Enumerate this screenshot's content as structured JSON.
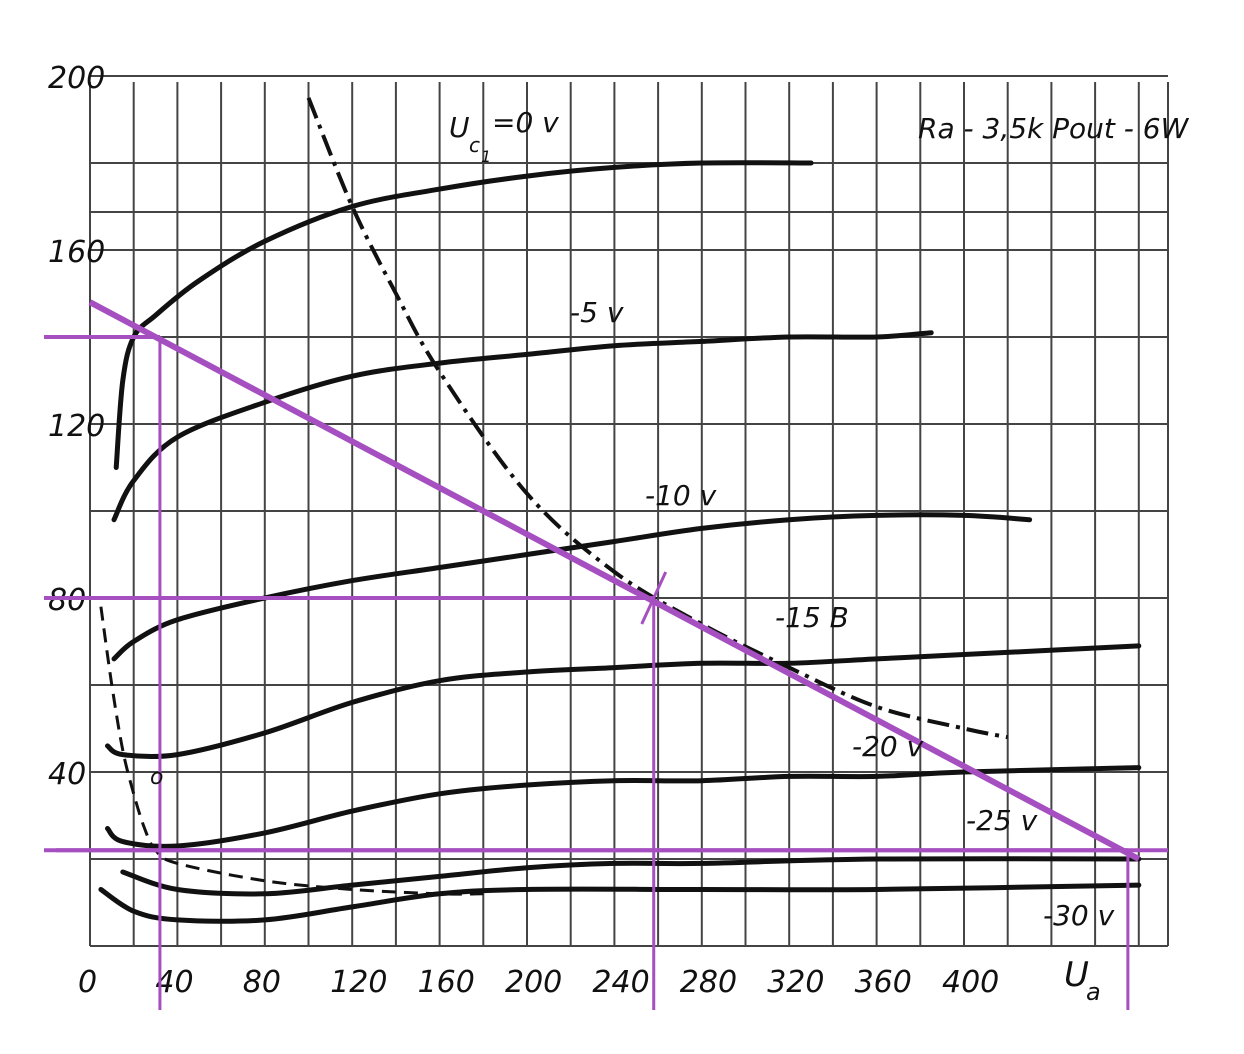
{
  "chart_data": {
    "type": "line",
    "title": "",
    "annotation": "Ra - 3,5k  Pout - 6W",
    "xlabel": "U",
    "xlabel_sub": "a",
    "ylabel": "",
    "xlim": [
      0,
      460
    ],
    "ylim": [
      0,
      200
    ],
    "x_ticks": [
      "0",
      "40",
      "80",
      "120",
      "160",
      "200",
      "240",
      "280",
      "320",
      "360",
      "400"
    ],
    "y_ticks": [
      "200",
      "160",
      "120",
      "80",
      "40"
    ],
    "grid": true,
    "curve_labels": {
      "uc1_main": "U",
      "uc1_sub": "c",
      "uc1_subsub": "1",
      "uc1_value": "=0 v",
      "m5": "-5 v",
      "m10": "-10 v",
      "m15": "-15 B",
      "m20": "-20 v",
      "m25": "-25 v",
      "m30": "-30 v",
      "small_circle": "o"
    },
    "series": [
      {
        "name": "=0 v",
        "points": [
          [
            12,
            110
          ],
          [
            15,
            130
          ],
          [
            20,
            140
          ],
          [
            30,
            145
          ],
          [
            50,
            153
          ],
          [
            80,
            162
          ],
          [
            120,
            170
          ],
          [
            160,
            174
          ],
          [
            200,
            177
          ],
          [
            240,
            179
          ],
          [
            280,
            180
          ],
          [
            330,
            180
          ]
        ]
      },
      {
        "name": "-5 v",
        "points": [
          [
            11,
            98
          ],
          [
            20,
            107
          ],
          [
            40,
            117
          ],
          [
            80,
            125
          ],
          [
            120,
            131
          ],
          [
            160,
            134
          ],
          [
            200,
            136
          ],
          [
            240,
            138
          ],
          [
            280,
            139
          ],
          [
            320,
            140
          ],
          [
            360,
            140
          ],
          [
            385,
            141
          ]
        ]
      },
      {
        "name": "-10 v",
        "points": [
          [
            11,
            66
          ],
          [
            20,
            70
          ],
          [
            40,
            75
          ],
          [
            80,
            80
          ],
          [
            120,
            84
          ],
          [
            160,
            87
          ],
          [
            200,
            90
          ],
          [
            240,
            93
          ],
          [
            280,
            96
          ],
          [
            320,
            98
          ],
          [
            360,
            99
          ],
          [
            400,
            99
          ],
          [
            430,
            98
          ]
        ]
      },
      {
        "name": "-15 B",
        "points": [
          [
            8,
            46
          ],
          [
            15,
            44
          ],
          [
            40,
            44
          ],
          [
            80,
            49
          ],
          [
            120,
            56
          ],
          [
            160,
            61
          ],
          [
            200,
            63
          ],
          [
            240,
            64
          ],
          [
            280,
            65
          ],
          [
            320,
            65
          ],
          [
            360,
            66
          ],
          [
            400,
            67
          ],
          [
            480,
            69
          ]
        ]
      },
      {
        "name": "-20 v",
        "points": [
          [
            8,
            27
          ],
          [
            15,
            24
          ],
          [
            40,
            23
          ],
          [
            80,
            26
          ],
          [
            120,
            31
          ],
          [
            160,
            35
          ],
          [
            200,
            37
          ],
          [
            240,
            38
          ],
          [
            280,
            38
          ],
          [
            320,
            39
          ],
          [
            360,
            39
          ],
          [
            400,
            40
          ],
          [
            480,
            41
          ]
        ]
      },
      {
        "name": "-25 v",
        "points": [
          [
            15,
            17
          ],
          [
            40,
            13
          ],
          [
            80,
            12
          ],
          [
            120,
            14
          ],
          [
            160,
            16
          ],
          [
            200,
            18
          ],
          [
            240,
            19
          ],
          [
            280,
            19
          ],
          [
            360,
            20
          ],
          [
            480,
            20
          ]
        ]
      },
      {
        "name": "-30 v",
        "points": [
          [
            5,
            13
          ],
          [
            20,
            8
          ],
          [
            40,
            6
          ],
          [
            80,
            6
          ],
          [
            120,
            9
          ],
          [
            160,
            12
          ],
          [
            200,
            13
          ],
          [
            280,
            13
          ],
          [
            360,
            13
          ],
          [
            480,
            14
          ]
        ]
      }
    ],
    "power_limit_curve": [
      [
        100,
        195
      ],
      [
        120,
        170
      ],
      [
        140,
        150
      ],
      [
        160,
        132
      ],
      [
        200,
        104
      ],
      [
        240,
        86
      ],
      [
        280,
        74
      ],
      [
        320,
        64
      ],
      [
        360,
        55
      ],
      [
        400,
        50
      ],
      [
        420,
        48
      ]
    ],
    "cutoff_curve": [
      [
        5,
        78
      ],
      [
        10,
        60
      ],
      [
        15,
        45
      ],
      [
        20,
        35
      ],
      [
        25,
        27
      ],
      [
        30,
        22
      ],
      [
        40,
        19
      ],
      [
        80,
        15
      ],
      [
        120,
        13
      ],
      [
        160,
        12
      ],
      [
        180,
        12
      ]
    ],
    "load_line": {
      "x": [
        0,
        480
      ],
      "y": [
        148,
        20
      ]
    },
    "operating_points": [
      {
        "x": 32,
        "y": 140
      },
      {
        "x": 258,
        "y": 80
      },
      {
        "x": 475,
        "y": 22
      }
    ],
    "colors": {
      "curves": "#111111",
      "grid": "#444444",
      "load_line": "#a54fc0",
      "background": "#ffffff"
    }
  }
}
